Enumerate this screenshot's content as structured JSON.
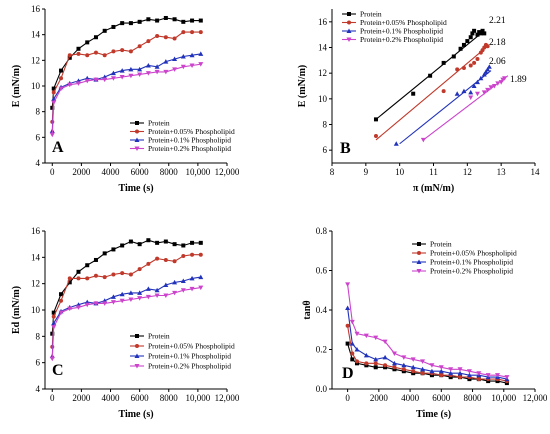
{
  "chart_data": [
    {
      "panel": "A",
      "type": "line",
      "xlabel": "Time (s)",
      "ylabel": "E (mN/m)",
      "xlim": [
        -500,
        12000
      ],
      "ylim": [
        4,
        16
      ],
      "xticks": [
        "0",
        "2000",
        "4000",
        "6000",
        "8000",
        "10,000",
        "12,000"
      ],
      "xtick_values": [
        0,
        2000,
        4000,
        6000,
        8000,
        10000,
        12000
      ],
      "yticks": [
        "4",
        "6",
        "8",
        "10",
        "12",
        "14",
        "16"
      ],
      "ytick_values": [
        4,
        6,
        8,
        10,
        12,
        14,
        16
      ],
      "legend_position": "bottom-right",
      "series": [
        {
          "name": "Protein",
          "color": "#000000",
          "marker": "square",
          "x": [
            0,
            100,
            600,
            1200,
            1800,
            2400,
            3000,
            3600,
            4200,
            4800,
            5400,
            6000,
            6600,
            7200,
            7800,
            8400,
            9000,
            9600,
            10200
          ],
          "y": [
            8.3,
            9.8,
            11.2,
            12.2,
            12.9,
            13.4,
            13.8,
            14.3,
            14.6,
            14.9,
            14.9,
            15.0,
            15.2,
            15.1,
            15.3,
            15.2,
            15.0,
            15.1,
            15.1
          ]
        },
        {
          "name": "Protein+0.05% Phospholipid",
          "color": "#c0392b",
          "marker": "circle",
          "x": [
            0,
            100,
            600,
            1200,
            1800,
            2400,
            3000,
            3600,
            4200,
            4800,
            5400,
            6000,
            6600,
            7200,
            7800,
            8400,
            9000,
            9600,
            10200
          ],
          "y": [
            7.2,
            9.5,
            10.6,
            12.4,
            12.5,
            12.4,
            12.6,
            12.4,
            12.7,
            12.8,
            12.7,
            13.1,
            13.5,
            13.9,
            13.8,
            13.7,
            14.2,
            14.2,
            14.2
          ]
        },
        {
          "name": "Protein+0.1% Phospholipid",
          "color": "#2233bb",
          "marker": "triangle",
          "x": [
            0,
            100,
            600,
            1200,
            1800,
            2400,
            3000,
            3600,
            4200,
            4800,
            5400,
            6000,
            6600,
            7200,
            7800,
            8400,
            9000,
            9600,
            10200
          ],
          "y": [
            6.5,
            9.0,
            9.9,
            10.2,
            10.4,
            10.6,
            10.5,
            10.7,
            11.0,
            11.2,
            11.3,
            11.3,
            11.6,
            11.5,
            11.9,
            12.1,
            12.3,
            12.4,
            12.5
          ]
        },
        {
          "name": "Protein+0.2% Phospholipid",
          "color": "#cc44cc",
          "marker": "triangle-down",
          "x": [
            0,
            100,
            600,
            1200,
            1800,
            2400,
            3000,
            3600,
            4200,
            4800,
            5400,
            6000,
            6600,
            7200,
            7800,
            8400,
            9000,
            9600,
            10200
          ],
          "y": [
            6.2,
            8.7,
            9.8,
            10.1,
            10.2,
            10.4,
            10.5,
            10.5,
            10.6,
            10.7,
            10.8,
            10.9,
            11.0,
            11.1,
            11.1,
            11.3,
            11.5,
            11.6,
            11.7
          ]
        }
      ]
    },
    {
      "panel": "B",
      "type": "scatter",
      "xlabel": "π (mN/m)",
      "ylabel": "E (mN/m)",
      "xlim": [
        8,
        14
      ],
      "ylim": [
        5,
        17
      ],
      "xticks": [
        "8",
        "9",
        "10",
        "11",
        "12",
        "13",
        "14"
      ],
      "xtick_values": [
        8,
        9,
        10,
        11,
        12,
        13,
        14
      ],
      "yticks": [
        "6",
        "8",
        "10",
        "12",
        "14",
        "16"
      ],
      "ytick_values": [
        6,
        8,
        10,
        12,
        14,
        16
      ],
      "legend_position": "top-left",
      "annotations": [
        "2.21",
        "2.18",
        "2.06",
        "1.89"
      ],
      "series": [
        {
          "name": "Protein",
          "color": "#000000",
          "marker": "square",
          "slope_label": "2.21",
          "x": [
            9.3,
            10.4,
            10.9,
            11.3,
            11.6,
            11.8,
            11.9,
            12.0,
            12.1,
            12.15,
            12.2,
            12.3,
            12.35,
            12.4,
            12.45,
            12.5
          ],
          "y": [
            8.4,
            10.4,
            11.8,
            12.8,
            13.3,
            13.9,
            14.2,
            14.5,
            14.8,
            15.1,
            15.3,
            15.0,
            15.2,
            15.1,
            15.3,
            15.1
          ],
          "fit": [
            [
              9.3,
              8.4
            ],
            [
              12.5,
              15.3
            ]
          ]
        },
        {
          "name": "Protein+0.05% Phospholipid",
          "color": "#c0392b",
          "marker": "circle",
          "slope_label": "2.18",
          "x": [
            9.3,
            11.3,
            11.7,
            11.9,
            12.1,
            12.2,
            12.3,
            12.4,
            12.45,
            12.5,
            12.55,
            12.6
          ],
          "y": [
            7.1,
            10.6,
            12.3,
            12.4,
            12.6,
            12.8,
            13.1,
            13.6,
            13.8,
            14.0,
            14.2,
            14.1
          ],
          "fit": [
            [
              9.3,
              6.8
            ],
            [
              12.6,
              14.1
            ]
          ]
        },
        {
          "name": "Protein+0.1% Phospholipid",
          "color": "#2233bb",
          "marker": "triangle",
          "slope_label": "2.06",
          "x": [
            9.9,
            11.7,
            11.9,
            12.1,
            12.2,
            12.3,
            12.4,
            12.5,
            12.55,
            12.6,
            12.65
          ],
          "y": [
            6.5,
            10.4,
            10.6,
            10.5,
            11.0,
            11.3,
            11.6,
            11.9,
            12.1,
            12.3,
            12.5
          ],
          "fit": [
            [
              10.0,
              6.5
            ],
            [
              12.7,
              12.2
            ]
          ]
        },
        {
          "name": "Protein+0.2% Phospholipid",
          "color": "#cc44cc",
          "marker": "triangle-down",
          "slope_label": "1.89",
          "x": [
            10.7,
            12.1,
            12.3,
            12.5,
            12.6,
            12.7,
            12.8,
            12.9,
            13.0,
            13.05,
            13.1
          ],
          "y": [
            6.8,
            10.1,
            10.4,
            10.5,
            10.7,
            10.9,
            11.0,
            11.2,
            11.3,
            11.5,
            11.6
          ],
          "fit": [
            [
              10.7,
              6.8
            ],
            [
              13.2,
              11.8
            ]
          ]
        }
      ]
    },
    {
      "panel": "C",
      "type": "line",
      "xlabel": "Time (s)",
      "ylabel": "Ed (mN/m)",
      "xlim": [
        -500,
        12000
      ],
      "ylim": [
        4,
        16
      ],
      "xticks": [
        "0",
        "2000",
        "4000",
        "6000",
        "8000",
        "10,000",
        "12,000"
      ],
      "xtick_values": [
        0,
        2000,
        4000,
        6000,
        8000,
        10000,
        12000
      ],
      "yticks": [
        "4",
        "6",
        "8",
        "10",
        "12",
        "14",
        "16"
      ],
      "ytick_values": [
        4,
        6,
        8,
        10,
        12,
        14,
        16
      ],
      "legend_position": "bottom-right",
      "series": [
        {
          "name": "Protein",
          "color": "#000000",
          "marker": "square",
          "x": [
            0,
            100,
            600,
            1200,
            1800,
            2400,
            3000,
            3600,
            4200,
            4800,
            5400,
            6000,
            6600,
            7200,
            7800,
            8400,
            9000,
            9600,
            10200
          ],
          "y": [
            8.2,
            9.8,
            11.2,
            12.1,
            12.9,
            13.4,
            13.8,
            14.3,
            14.6,
            14.9,
            15.2,
            15.0,
            15.3,
            15.1,
            15.2,
            15.0,
            14.9,
            15.1,
            15.1
          ]
        },
        {
          "name": "Protein+0.05% Phospholipid",
          "color": "#c0392b",
          "marker": "circle",
          "x": [
            0,
            100,
            600,
            1200,
            1800,
            2400,
            3000,
            3600,
            4200,
            4800,
            5400,
            6000,
            6600,
            7200,
            7800,
            8400,
            9000,
            9600,
            10200
          ],
          "y": [
            7.2,
            9.5,
            10.7,
            12.4,
            12.4,
            12.4,
            12.6,
            12.5,
            12.7,
            12.8,
            12.7,
            13.1,
            13.5,
            13.9,
            13.8,
            13.7,
            14.1,
            14.2,
            14.2
          ]
        },
        {
          "name": "Protein+0.1% Phospholipid",
          "color": "#2233bb",
          "marker": "triangle",
          "x": [
            0,
            100,
            600,
            1200,
            1800,
            2400,
            3000,
            3600,
            4200,
            4800,
            5400,
            6000,
            6600,
            7200,
            7800,
            8400,
            9000,
            9600,
            10200
          ],
          "y": [
            6.5,
            9.0,
            9.9,
            10.2,
            10.4,
            10.6,
            10.5,
            10.7,
            11.0,
            11.2,
            11.3,
            11.3,
            11.6,
            11.5,
            11.9,
            12.1,
            12.2,
            12.4,
            12.5
          ]
        },
        {
          "name": "Protein+0.2% Phospholipid",
          "color": "#cc44cc",
          "marker": "triangle-down",
          "x": [
            0,
            100,
            600,
            1200,
            1800,
            2400,
            3000,
            3600,
            4200,
            4800,
            5400,
            6000,
            6600,
            7200,
            7800,
            8400,
            9000,
            9600,
            10200
          ],
          "y": [
            6.3,
            8.7,
            9.8,
            10.1,
            10.2,
            10.4,
            10.5,
            10.5,
            10.6,
            10.7,
            10.8,
            10.9,
            11.0,
            11.1,
            11.1,
            11.3,
            11.5,
            11.6,
            11.7
          ]
        }
      ]
    },
    {
      "panel": "D",
      "type": "line",
      "xlabel": "Time (s)",
      "ylabel": "tanθ",
      "xlim": [
        -1000,
        12000
      ],
      "ylim": [
        0.0,
        0.8
      ],
      "xticks": [
        "0",
        "2000",
        "4000",
        "6000",
        "8000",
        "10,000",
        "12,000"
      ],
      "xtick_values": [
        0,
        2000,
        4000,
        6000,
        8000,
        10000,
        12000
      ],
      "yticks": [
        "0.0",
        "0.2",
        "0.4",
        "0.6",
        "0.8"
      ],
      "ytick_values": [
        0.0,
        0.2,
        0.4,
        0.6,
        0.8
      ],
      "legend_position": "top-right",
      "series": [
        {
          "name": "Protein",
          "color": "#000000",
          "marker": "square",
          "x": [
            0,
            300,
            600,
            1200,
            1800,
            2400,
            3000,
            3600,
            4200,
            4800,
            5400,
            6000,
            6600,
            7200,
            7800,
            8400,
            9000,
            9600,
            10200
          ],
          "y": [
            0.23,
            0.15,
            0.13,
            0.12,
            0.11,
            0.11,
            0.1,
            0.09,
            0.08,
            0.08,
            0.07,
            0.07,
            0.06,
            0.06,
            0.05,
            0.05,
            0.04,
            0.04,
            0.03
          ]
        },
        {
          "name": "Protein+0.05% Phospholipid",
          "color": "#c0392b",
          "marker": "circle",
          "x": [
            0,
            300,
            600,
            1200,
            1800,
            2400,
            3000,
            3600,
            4200,
            4800,
            5400,
            6000,
            6600,
            7200,
            7800,
            8400,
            9000,
            9600,
            10200
          ],
          "y": [
            0.32,
            0.18,
            0.14,
            0.13,
            0.13,
            0.12,
            0.11,
            0.1,
            0.09,
            0.08,
            0.08,
            0.07,
            0.07,
            0.06,
            0.06,
            0.05,
            0.05,
            0.05,
            0.04
          ]
        },
        {
          "name": "Protein+0.1% Phospholipid",
          "color": "#2233bb",
          "marker": "triangle",
          "x": [
            0,
            300,
            600,
            1200,
            1800,
            2400,
            3000,
            3600,
            4200,
            4800,
            5400,
            6000,
            6600,
            7200,
            7800,
            8400,
            9000,
            9600,
            10200
          ],
          "y": [
            0.41,
            0.23,
            0.2,
            0.17,
            0.15,
            0.16,
            0.13,
            0.12,
            0.11,
            0.1,
            0.09,
            0.09,
            0.08,
            0.08,
            0.07,
            0.07,
            0.06,
            0.06,
            0.05
          ]
        },
        {
          "name": "Protein+0.2% Phospholipid",
          "color": "#cc44cc",
          "marker": "triangle-down",
          "x": [
            0,
            300,
            600,
            1200,
            1800,
            2400,
            3000,
            3600,
            4200,
            4800,
            5400,
            6000,
            6600,
            7200,
            7800,
            8400,
            9000,
            9600,
            10200
          ],
          "y": [
            0.53,
            0.34,
            0.28,
            0.27,
            0.26,
            0.24,
            0.18,
            0.16,
            0.15,
            0.14,
            0.12,
            0.11,
            0.1,
            0.1,
            0.09,
            0.08,
            0.07,
            0.07,
            0.06
          ]
        }
      ]
    }
  ]
}
